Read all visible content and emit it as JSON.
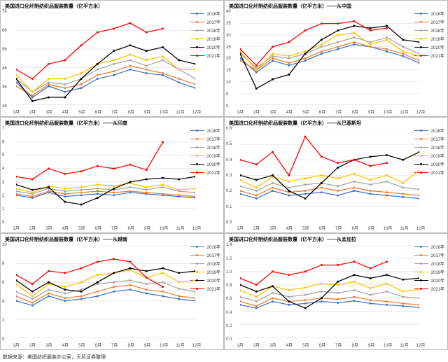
{
  "source_note": "数据来源：美国纺织服装办公室，天风证券整理",
  "x_labels": [
    "1月",
    "2月",
    "3月",
    "4月",
    "5月",
    "6月",
    "7月",
    "8月",
    "9月",
    "10月",
    "11月",
    "12月"
  ],
  "series_meta": [
    {
      "key": "y2016",
      "label": "2016年",
      "color": "#4472c4"
    },
    {
      "key": "y2017",
      "label": "2017年",
      "color": "#ed7d31"
    },
    {
      "key": "y2018",
      "label": "2018年",
      "color": "#a5a5a5"
    },
    {
      "key": "y2019",
      "label": "2019年",
      "color": "#ffc000"
    },
    {
      "key": "y2020",
      "label": "2020年",
      "color": "#000000"
    },
    {
      "key": "y2021",
      "label": "2021年",
      "color": "#ff0000"
    }
  ],
  "style": {
    "grid_color": "#d9d9d9",
    "axis_color": "#888",
    "bg": "#ffffff",
    "line_width": 1.2,
    "marker_radius": 1.4,
    "title_fontsize": 7,
    "tick_fontsize": 6
  },
  "panels": [
    {
      "title": "美国进口化纤制纺织品服装数量（亿平方米）",
      "ylim": [
        26,
        76
      ],
      "ystep": 10,
      "data": {
        "y2016": [
          38,
          30,
          36,
          33,
          35,
          40,
          42,
          45,
          43,
          42,
          38,
          35
        ],
        "y2017": [
          36,
          31,
          37,
          35,
          37,
          42,
          44,
          47,
          45,
          43,
          40,
          37
        ],
        "y2018": [
          40,
          33,
          38,
          37,
          40,
          45,
          48,
          50,
          47,
          50,
          45,
          40
        ],
        "y2019": [
          42,
          33,
          40,
          40,
          43,
          48,
          50,
          53,
          50,
          52,
          45,
          45
        ],
        "y2020": [
          40,
          28,
          30,
          30,
          40,
          48,
          55,
          58,
          55,
          57,
          50,
          48
        ],
        "y2021": [
          45,
          40,
          48,
          50,
          58,
          65,
          67,
          70,
          65,
          67,
          null,
          null
        ]
      }
    },
    {
      "title": "美国进口化纤制纺织品服装数量（亿平方米）——从中国",
      "ylim": [
        0,
        40
      ],
      "ystep": 5,
      "data": {
        "y2016": [
          20,
          14,
          19,
          17,
          19,
          22,
          24,
          26,
          25,
          23,
          21,
          18
        ],
        "y2017": [
          19,
          15,
          20,
          18,
          20,
          23,
          25,
          27,
          25,
          24,
          22,
          19
        ],
        "y2018": [
          22,
          16,
          21,
          20,
          22,
          25,
          27,
          29,
          27,
          29,
          25,
          22
        ],
        "y2019": [
          23,
          15,
          22,
          21,
          23,
          26,
          30,
          31,
          26,
          28,
          23,
          21
        ],
        "y2020": [
          22,
          7,
          11,
          13,
          22,
          28,
          32,
          34,
          33,
          34,
          28,
          27
        ],
        "y2021": [
          24,
          17,
          25,
          27,
          32,
          35,
          35,
          36,
          32,
          33,
          null,
          null
        ]
      }
    },
    {
      "title": "美国进口化纤制纺织品服装数量（亿平方米）——从印度",
      "ylim": [
        0,
        7
      ],
      "ystep": 1,
      "data": {
        "y2016": [
          2.0,
          1.8,
          2.2,
          1.9,
          2.0,
          2.1,
          2.0,
          2.2,
          2.1,
          2.0,
          1.9,
          1.8
        ],
        "y2017": [
          2.1,
          1.9,
          2.3,
          2.1,
          2.2,
          2.3,
          2.2,
          2.3,
          2.2,
          2.1,
          2.0,
          1.9
        ],
        "y2018": [
          2.3,
          2.1,
          2.5,
          2.3,
          2.4,
          2.5,
          2.4,
          2.6,
          2.4,
          2.6,
          2.3,
          2.2
        ],
        "y2019": [
          2.5,
          2.2,
          2.7,
          2.5,
          2.6,
          2.8,
          2.7,
          2.9,
          2.6,
          2.8,
          2.4,
          2.5
        ],
        "y2020": [
          2.8,
          2.4,
          2.6,
          1.5,
          1.3,
          1.8,
          2.5,
          3.0,
          3.2,
          3.3,
          3.2,
          3.4
        ],
        "y2021": [
          3.4,
          3.2,
          4.0,
          3.6,
          3.8,
          4.2,
          4.0,
          4.3,
          3.9,
          6.0,
          null,
          null
        ]
      }
    },
    {
      "title": "美国进口化纤制纺织品服装数量（亿平方米）——从巴基斯坦",
      "ylim": [
        0,
        0.6
      ],
      "ystep": 0.1,
      "data": {
        "y2016": [
          0.18,
          0.15,
          0.2,
          0.17,
          0.18,
          0.19,
          0.17,
          0.2,
          0.18,
          0.17,
          0.16,
          0.15
        ],
        "y2017": [
          0.2,
          0.17,
          0.22,
          0.19,
          0.2,
          0.22,
          0.2,
          0.22,
          0.2,
          0.19,
          0.18,
          0.17
        ],
        "y2018": [
          0.23,
          0.2,
          0.25,
          0.22,
          0.24,
          0.25,
          0.23,
          0.26,
          0.24,
          0.26,
          0.22,
          0.21
        ],
        "y2019": [
          0.27,
          0.22,
          0.29,
          0.26,
          0.28,
          0.3,
          0.28,
          0.31,
          0.27,
          0.3,
          0.25,
          0.33
        ],
        "y2020": [
          0.3,
          0.27,
          0.3,
          0.2,
          0.15,
          0.25,
          0.35,
          0.4,
          0.42,
          0.43,
          0.4,
          0.45
        ],
        "y2021": [
          0.4,
          0.37,
          0.45,
          0.3,
          0.55,
          0.42,
          0.38,
          0.4,
          0.36,
          0.38,
          null,
          null
        ]
      }
    },
    {
      "title": "美国进口化纤制纺织品服装数量（亿平方米）——从越南",
      "ylim": [
        0,
        10
      ],
      "ystep": 2,
      "data": {
        "y2016": [
          4.0,
          3.5,
          4.5,
          4.0,
          4.2,
          4.5,
          5.0,
          5.2,
          4.8,
          4.5,
          4.2,
          4.0
        ],
        "y2017": [
          4.5,
          3.8,
          4.8,
          4.3,
          4.5,
          5.0,
          5.5,
          5.7,
          5.2,
          5.0,
          4.5,
          4.3
        ],
        "y2018": [
          5.0,
          4.2,
          5.2,
          4.8,
          5.2,
          5.8,
          6.0,
          6.2,
          5.8,
          6.0,
          5.3,
          5.0
        ],
        "y2019": [
          5.8,
          4.5,
          5.8,
          5.5,
          6.0,
          6.8,
          7.0,
          7.3,
          6.5,
          7.0,
          6.0,
          6.2
        ],
        "y2020": [
          6.2,
          5.0,
          6.0,
          5.2,
          5.0,
          6.0,
          7.0,
          7.5,
          7.2,
          7.5,
          7.0,
          7.2
        ],
        "y2021": [
          6.8,
          5.8,
          7.2,
          7.0,
          7.5,
          8.2,
          8.5,
          8.2,
          6.5,
          5.5,
          null,
          null
        ]
      }
    },
    {
      "title": "美国进口化纤制纺织品服装数量（亿平方米）——从孟加拉",
      "ylim": [
        0,
        1.4
      ],
      "ystep": 0.2,
      "data": {
        "y2016": [
          0.5,
          0.45,
          0.55,
          0.5,
          0.52,
          0.55,
          0.53,
          0.56,
          0.52,
          0.5,
          0.48,
          0.46
        ],
        "y2017": [
          0.55,
          0.48,
          0.6,
          0.55,
          0.57,
          0.6,
          0.58,
          0.62,
          0.57,
          0.55,
          0.52,
          0.5
        ],
        "y2018": [
          0.62,
          0.55,
          0.68,
          0.62,
          0.65,
          0.7,
          0.68,
          0.72,
          0.65,
          0.7,
          0.62,
          0.6
        ],
        "y2019": [
          0.72,
          0.62,
          0.78,
          0.72,
          0.76,
          0.82,
          0.8,
          0.85,
          0.75,
          0.82,
          0.7,
          0.73
        ],
        "y2020": [
          0.8,
          0.7,
          0.78,
          0.55,
          0.45,
          0.6,
          0.85,
          0.95,
          0.9,
          0.95,
          0.88,
          0.9
        ],
        "y2021": [
          0.9,
          0.8,
          1.0,
          0.95,
          1.0,
          1.1,
          1.1,
          1.15,
          1.05,
          1.15,
          null,
          null
        ]
      }
    }
  ]
}
